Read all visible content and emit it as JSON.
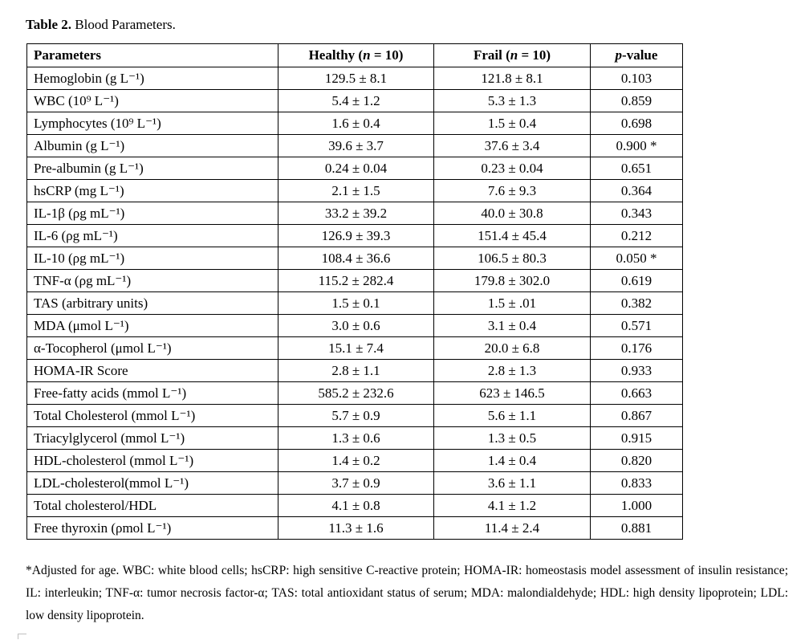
{
  "caption": {
    "label": "Table 2.",
    "title": " Blood Parameters."
  },
  "table": {
    "headers": {
      "parameters": "Parameters",
      "healthy_pre": "Healthy (",
      "healthy_n": "n",
      "healthy_post": " = 10)",
      "frail_pre": "Frail (",
      "frail_n": "n",
      "frail_post": " = 10)",
      "p_italic": "p",
      "p_post": "-value"
    },
    "rows": [
      {
        "parameter": "Hemoglobin (g L⁻¹)",
        "healthy": "129.5 ± 8.1",
        "frail": "121.8 ± 8.1",
        "p": "0.103"
      },
      {
        "parameter": "WBC (10⁹ L⁻¹)",
        "healthy": "5.4 ± 1.2",
        "frail": "5.3 ± 1.3",
        "p": "0.859"
      },
      {
        "parameter": "Lymphocytes (10⁹ L⁻¹)",
        "healthy": "1.6 ± 0.4",
        "frail": "1.5 ± 0.4",
        "p": "0.698"
      },
      {
        "parameter": "Albumin (g L⁻¹)",
        "healthy": "39.6 ± 3.7",
        "frail": "37.6 ± 3.4",
        "p": "0.900 *"
      },
      {
        "parameter": "Pre-albumin (g L⁻¹)",
        "healthy": "0.24 ± 0.04",
        "frail": "0.23 ± 0.04",
        "p": "0.651"
      },
      {
        "parameter": "hsCRP (mg L⁻¹)",
        "healthy": "2.1 ± 1.5",
        "frail": "7.6 ± 9.3",
        "p": "0.364"
      },
      {
        "parameter": "IL-1β (ρg mL⁻¹)",
        "healthy": "33.2 ± 39.2",
        "frail": "40.0 ± 30.8",
        "p": "0.343"
      },
      {
        "parameter": "IL-6 (ρg mL⁻¹)",
        "healthy": "126.9 ± 39.3",
        "frail": "151.4 ± 45.4",
        "p": "0.212"
      },
      {
        "parameter": "IL-10 (ρg mL⁻¹)",
        "healthy": "108.4 ± 36.6",
        "frail": "106.5 ± 80.3",
        "p": "0.050 *"
      },
      {
        "parameter": "TNF-α (ρg mL⁻¹)",
        "healthy": "115.2 ± 282.4",
        "frail": "179.8 ± 302.0",
        "p": "0.619"
      },
      {
        "parameter": "TAS (arbitrary units)",
        "healthy": "1.5 ± 0.1",
        "frail": "1.5 ± .01",
        "p": "0.382"
      },
      {
        "parameter": "MDA (μmol L⁻¹)",
        "healthy": "3.0 ± 0.6",
        "frail": "3.1 ± 0.4",
        "p": "0.571"
      },
      {
        "parameter": "α-Tocopherol (μmol L⁻¹)",
        "healthy": "15.1 ± 7.4",
        "frail": "20.0 ± 6.8",
        "p": "0.176"
      },
      {
        "parameter": "HOMA-IR Score",
        "healthy": "2.8 ± 1.1",
        "frail": "2.8 ± 1.3",
        "p": "0.933"
      },
      {
        "parameter": "Free-fatty acids (mmol L⁻¹)",
        "healthy": "585.2 ± 232.6",
        "frail": "623 ± 146.5",
        "p": "0.663"
      },
      {
        "parameter": "Total Cholesterol (mmol L⁻¹)",
        "healthy": "5.7 ± 0.9",
        "frail": "5.6 ± 1.1",
        "p": "0.867"
      },
      {
        "parameter": "Triacylglycerol (mmol L⁻¹)",
        "healthy": "1.3 ± 0.6",
        "frail": "1.3 ± 0.5",
        "p": "0.915"
      },
      {
        "parameter": "HDL-cholesterol (mmol L⁻¹)",
        "healthy": "1.4 ± 0.2",
        "frail": "1.4 ± 0.4",
        "p": "0.820"
      },
      {
        "parameter": "LDL-cholesterol(mmol L⁻¹)",
        "healthy": "3.7 ± 0.9",
        "frail": "3.6 ± 1.1",
        "p": "0.833"
      },
      {
        "parameter": "Total cholesterol/HDL",
        "healthy": "4.1 ± 0.8",
        "frail": "4.1 ± 1.2",
        "p": "1.000"
      },
      {
        "parameter": "Free thyroxin (ρmol L⁻¹)",
        "healthy": "11.3 ± 1.6",
        "frail": "11.4 ± 2.4",
        "p": "0.881"
      }
    ]
  },
  "footnote": "*Adjusted for age. WBC: white blood cells; hsCRP: high sensitive C-reactive protein; HOMA-IR: homeostasis model assessment of insulin resistance; IL: interleukin; TNF-α: tumor necrosis factor-α; TAS: total antioxidant status of serum; MDA: malondialdehyde; HDL: high density lipoprotein; LDL: low density lipoprotein."
}
